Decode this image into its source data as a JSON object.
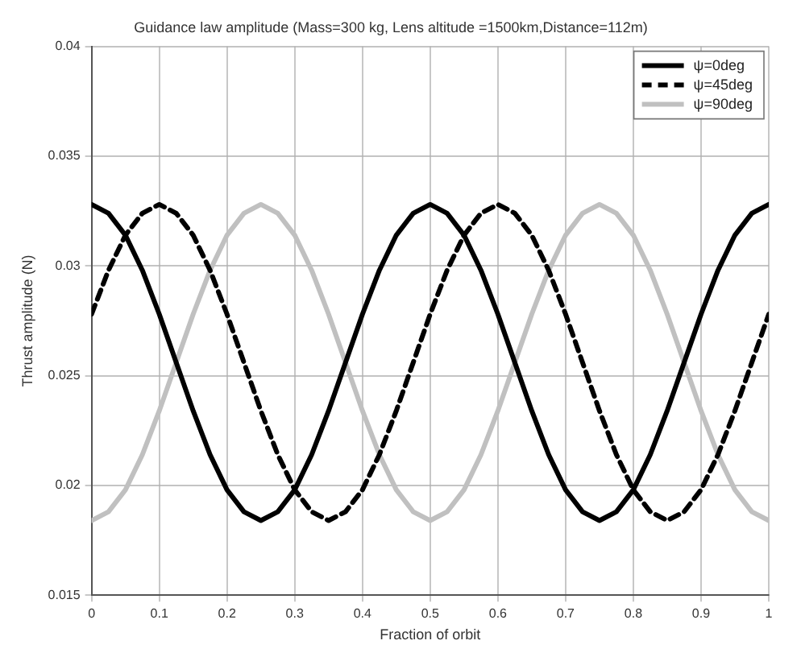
{
  "chart_data": {
    "type": "line",
    "title": "Guidance law amplitude (Mass=300 kg, Lens altitude =1500km,Distance=112m)",
    "xlabel": "Fraction of orbit",
    "ylabel": "Thrust amplitude (N)",
    "x": [
      0,
      0.025,
      0.05,
      0.075,
      0.1,
      0.125,
      0.15,
      0.175,
      0.2,
      0.225,
      0.25,
      0.275,
      0.3,
      0.325,
      0.35,
      0.375,
      0.4,
      0.425,
      0.45,
      0.475,
      0.5,
      0.525,
      0.55,
      0.575,
      0.6,
      0.625,
      0.65,
      0.675,
      0.7,
      0.725,
      0.75,
      0.775,
      0.8,
      0.825,
      0.85,
      0.875,
      0.9,
      0.925,
      0.95,
      0.975,
      1
    ],
    "xlim": [
      0,
      1
    ],
    "xticks": [
      0,
      0.1,
      0.2,
      0.3,
      0.4,
      0.5,
      0.6,
      0.7,
      0.8,
      0.9,
      1
    ],
    "ylim": [
      0.015,
      0.04
    ],
    "yticks": [
      0.015,
      0.02,
      0.025,
      0.03,
      0.035,
      0.04
    ],
    "grid": true,
    "legend": "top right",
    "marker": "none",
    "series": [
      {
        "name": "ψ=0deg",
        "color": "#000000",
        "line_style": "solid",
        "values": [
          0.0328,
          0.0324,
          0.0314,
          0.0298,
          0.0278,
          0.0256,
          0.0234,
          0.0214,
          0.0198,
          0.0188,
          0.0184,
          0.0188,
          0.0198,
          0.0214,
          0.0234,
          0.0256,
          0.0278,
          0.0298,
          0.0314,
          0.0324,
          0.0328,
          0.0324,
          0.0314,
          0.0298,
          0.0278,
          0.0256,
          0.0234,
          0.0214,
          0.0198,
          0.0188,
          0.0184,
          0.0188,
          0.0198,
          0.0214,
          0.0234,
          0.0256,
          0.0278,
          0.0298,
          0.0314,
          0.0324,
          0.0328
        ]
      },
      {
        "name": "ψ=45deg",
        "color": "#000000",
        "line_style": "dashed",
        "values": [
          0.0278,
          0.0298,
          0.0314,
          0.0324,
          0.0328,
          0.0324,
          0.0314,
          0.0298,
          0.0278,
          0.0256,
          0.0234,
          0.0214,
          0.0198,
          0.0188,
          0.0184,
          0.0188,
          0.0198,
          0.0214,
          0.0234,
          0.0256,
          0.0278,
          0.0298,
          0.0314,
          0.0324,
          0.0328,
          0.0324,
          0.0314,
          0.0298,
          0.0278,
          0.0256,
          0.0234,
          0.0214,
          0.0198,
          0.0188,
          0.0184,
          0.0188,
          0.0198,
          0.0214,
          0.0234,
          0.0256,
          0.0278
        ]
      },
      {
        "name": "ψ=90deg",
        "color": "#c0c0c0",
        "line_style": "solid",
        "values": [
          0.0184,
          0.0188,
          0.0198,
          0.0214,
          0.0234,
          0.0256,
          0.0278,
          0.0298,
          0.0314,
          0.0324,
          0.0328,
          0.0324,
          0.0314,
          0.0298,
          0.0278,
          0.0256,
          0.0234,
          0.0214,
          0.0198,
          0.0188,
          0.0184,
          0.0188,
          0.0198,
          0.0214,
          0.0234,
          0.0256,
          0.0278,
          0.0298,
          0.0314,
          0.0324,
          0.0328,
          0.0324,
          0.0314,
          0.0298,
          0.0278,
          0.0256,
          0.0234,
          0.0214,
          0.0198,
          0.0188,
          0.0184
        ]
      }
    ]
  }
}
